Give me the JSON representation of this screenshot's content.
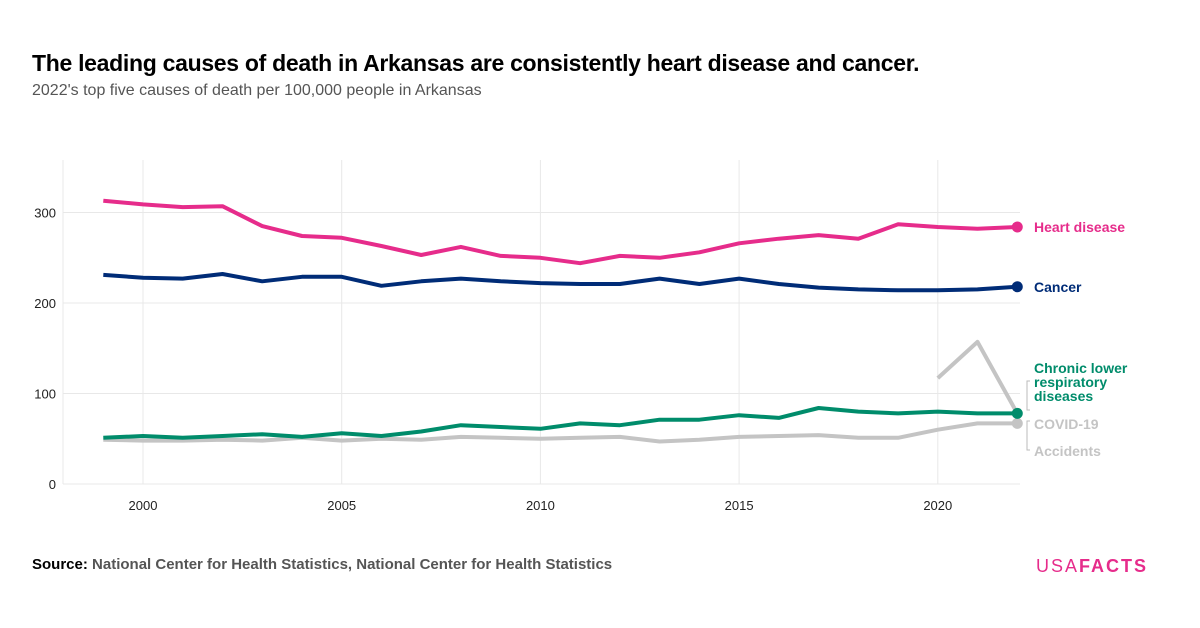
{
  "title": "The leading causes of death in Arkansas are consistently heart disease and cancer.",
  "subtitle": "2022's top five causes of death per 100,000 people in Arkansas",
  "source_label": "Source:",
  "source_text": "National Center for Health Statistics, National Center for Health Statistics",
  "logo": {
    "part1": "USA",
    "part2": "FACTS"
  },
  "chart_data": {
    "type": "line",
    "x": [
      1999,
      2000,
      2001,
      2002,
      2003,
      2004,
      2005,
      2006,
      2007,
      2008,
      2009,
      2010,
      2011,
      2012,
      2013,
      2014,
      2015,
      2016,
      2017,
      2018,
      2019,
      2020,
      2021,
      2022
    ],
    "xticks": [
      2000,
      2005,
      2010,
      2015,
      2020
    ],
    "yticks": [
      0,
      100,
      200,
      300
    ],
    "ylim": [
      0,
      355
    ],
    "xlim": [
      1998,
      2023
    ],
    "grid": true,
    "legend": "direct labels at line ends",
    "series": [
      {
        "name": "Heart disease",
        "color": "#e62c8b",
        "values": [
          313,
          309,
          306,
          307,
          285,
          274,
          272,
          263,
          253,
          262,
          252,
          250,
          244,
          252,
          250,
          256,
          266,
          271,
          275,
          271,
          287,
          284,
          282,
          284
        ]
      },
      {
        "name": "Cancer",
        "color": "#002c77",
        "values": [
          231,
          228,
          227,
          232,
          224,
          229,
          229,
          219,
          224,
          227,
          224,
          222,
          221,
          221,
          227,
          221,
          227,
          221,
          217,
          215,
          214,
          214,
          215,
          218
        ]
      },
      {
        "name": "Chronic lower respiratory diseases",
        "color": "#008c6b",
        "values": [
          51,
          53,
          51,
          53,
          55,
          52,
          56,
          53,
          58,
          65,
          63,
          61,
          67,
          65,
          71,
          71,
          76,
          73,
          84,
          80,
          78,
          80,
          78,
          78
        ]
      },
      {
        "name": "COVID-19",
        "color": "#c4c4c4",
        "values": [
          null,
          null,
          null,
          null,
          null,
          null,
          null,
          null,
          null,
          null,
          null,
          null,
          null,
          null,
          null,
          null,
          null,
          null,
          null,
          null,
          null,
          117,
          157,
          78
        ]
      },
      {
        "name": "Accidents",
        "color": "#c4c4c4",
        "values": [
          49,
          48,
          48,
          49,
          48,
          51,
          48,
          50,
          49,
          52,
          51,
          50,
          51,
          52,
          47,
          49,
          52,
          53,
          54,
          51,
          51,
          60,
          67,
          67
        ]
      }
    ]
  }
}
